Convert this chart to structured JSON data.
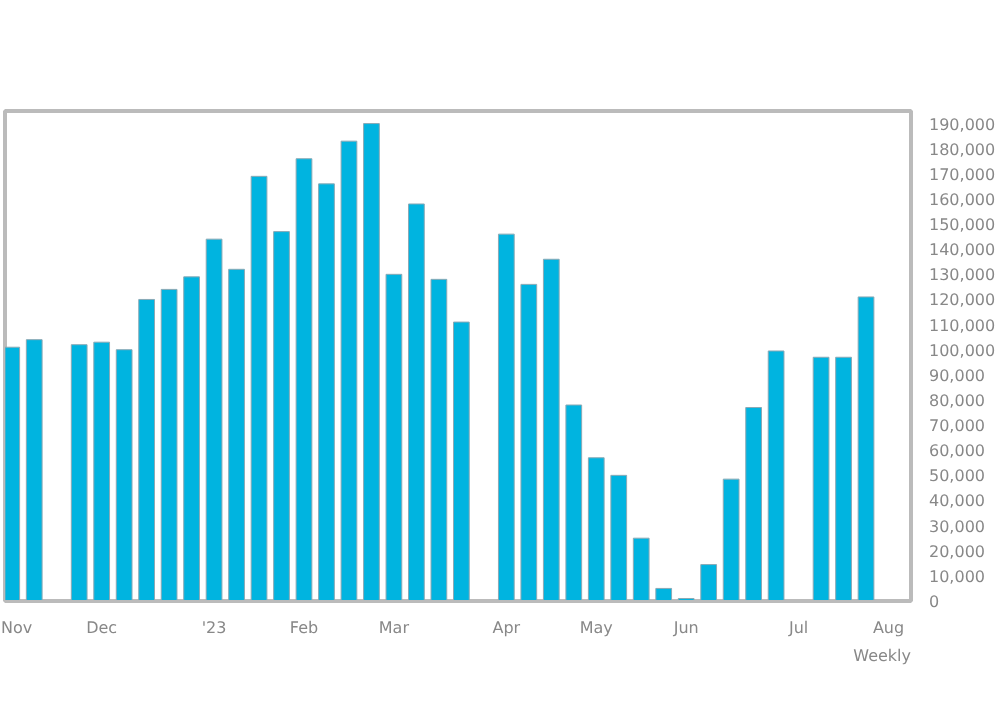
{
  "chart_data": {
    "type": "bar",
    "categories": [
      "Nov",
      null,
      null,
      null,
      "Dec",
      null,
      null,
      null,
      null,
      "'23",
      null,
      null,
      null,
      "Feb",
      null,
      null,
      null,
      "Mar",
      null,
      null,
      null,
      null,
      "Apr",
      null,
      null,
      null,
      "May",
      null,
      null,
      null,
      "Jun",
      null,
      null,
      null,
      null,
      "Jul",
      null,
      null,
      null,
      "Aug"
    ],
    "values": [
      101000,
      104000,
      null,
      102000,
      103000,
      100000,
      120000,
      124000,
      129000,
      144000,
      132000,
      169000,
      147000,
      176000,
      166000,
      183000,
      190000,
      130000,
      158000,
      128000,
      111000,
      null,
      146000,
      126000,
      136000,
      78000,
      57000,
      50000,
      25000,
      5000,
      1000,
      14500,
      48500,
      77000,
      99500,
      null,
      97000,
      97000,
      121000,
      null
    ],
    "color": "#00b4e0",
    "ylim": [
      0,
      195000
    ],
    "yticks": [
      0,
      {
        "value": 10000,
        "label": "10,000"
      },
      {
        "value": 20000,
        "label": "20,000"
      },
      {
        "value": 30000,
        "label": "30,000"
      },
      {
        "value": 40000,
        "label": "40,000"
      },
      {
        "value": 50000,
        "label": "50,000"
      },
      {
        "value": 60000,
        "label": "60,000"
      },
      {
        "value": 70000,
        "label": "70,000"
      },
      {
        "value": 80000,
        "label": "80,000"
      },
      {
        "value": 90000,
        "label": "90,000"
      },
      {
        "value": 100000,
        "label": "100,000"
      },
      {
        "value": 110000,
        "label": "110,000"
      },
      {
        "value": 120000,
        "label": "120,000"
      },
      {
        "value": 130000,
        "label": "130,000"
      },
      {
        "value": 140000,
        "label": "140,000"
      },
      {
        "value": 150000,
        "label": "150,000"
      },
      {
        "value": 160000,
        "label": "160,000"
      },
      {
        "value": 170000,
        "label": "170,000"
      },
      {
        "value": 180000,
        "label": "180,000"
      },
      {
        "value": 190000,
        "label": "190,000"
      }
    ],
    "annotations": [
      "Weekly"
    ],
    "grid": false
  }
}
